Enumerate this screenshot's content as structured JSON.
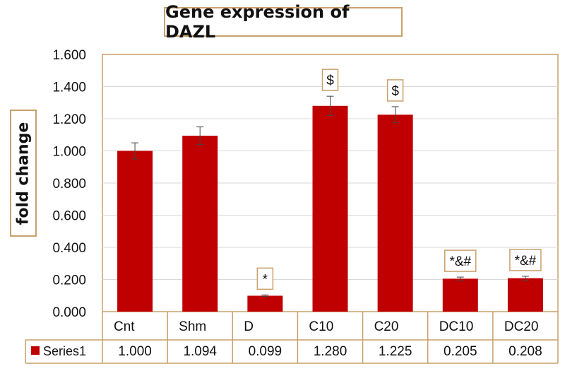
{
  "chart_data": {
    "type": "bar",
    "title": "Gene expression of DAZL",
    "xlabel": "",
    "ylabel": "fold change",
    "ylim": [
      0,
      1.6
    ],
    "yticks": [
      "0.000",
      "0.200",
      "0.400",
      "0.600",
      "0.800",
      "1.000",
      "1.200",
      "1.400",
      "1.600"
    ],
    "grid": true,
    "categories": [
      "Cnt",
      "Shm",
      "D",
      "C10",
      "C20",
      "DC10",
      "DC20"
    ],
    "series": [
      {
        "name": "Series1",
        "color": "#c00000",
        "values": [
          1.0,
          1.094,
          0.099,
          1.28,
          1.225,
          0.205,
          0.208
        ],
        "value_labels": [
          "1.000",
          "1.094",
          "0.099",
          "1.280",
          "1.225",
          "0.205",
          "0.208"
        ],
        "errors": [
          0.05,
          0.055,
          0.005,
          0.06,
          0.05,
          0.01,
          0.012
        ]
      }
    ],
    "annotations": [
      "",
      "",
      "*",
      "$",
      "$",
      "*&#",
      "*&#"
    ],
    "data_table": true
  }
}
